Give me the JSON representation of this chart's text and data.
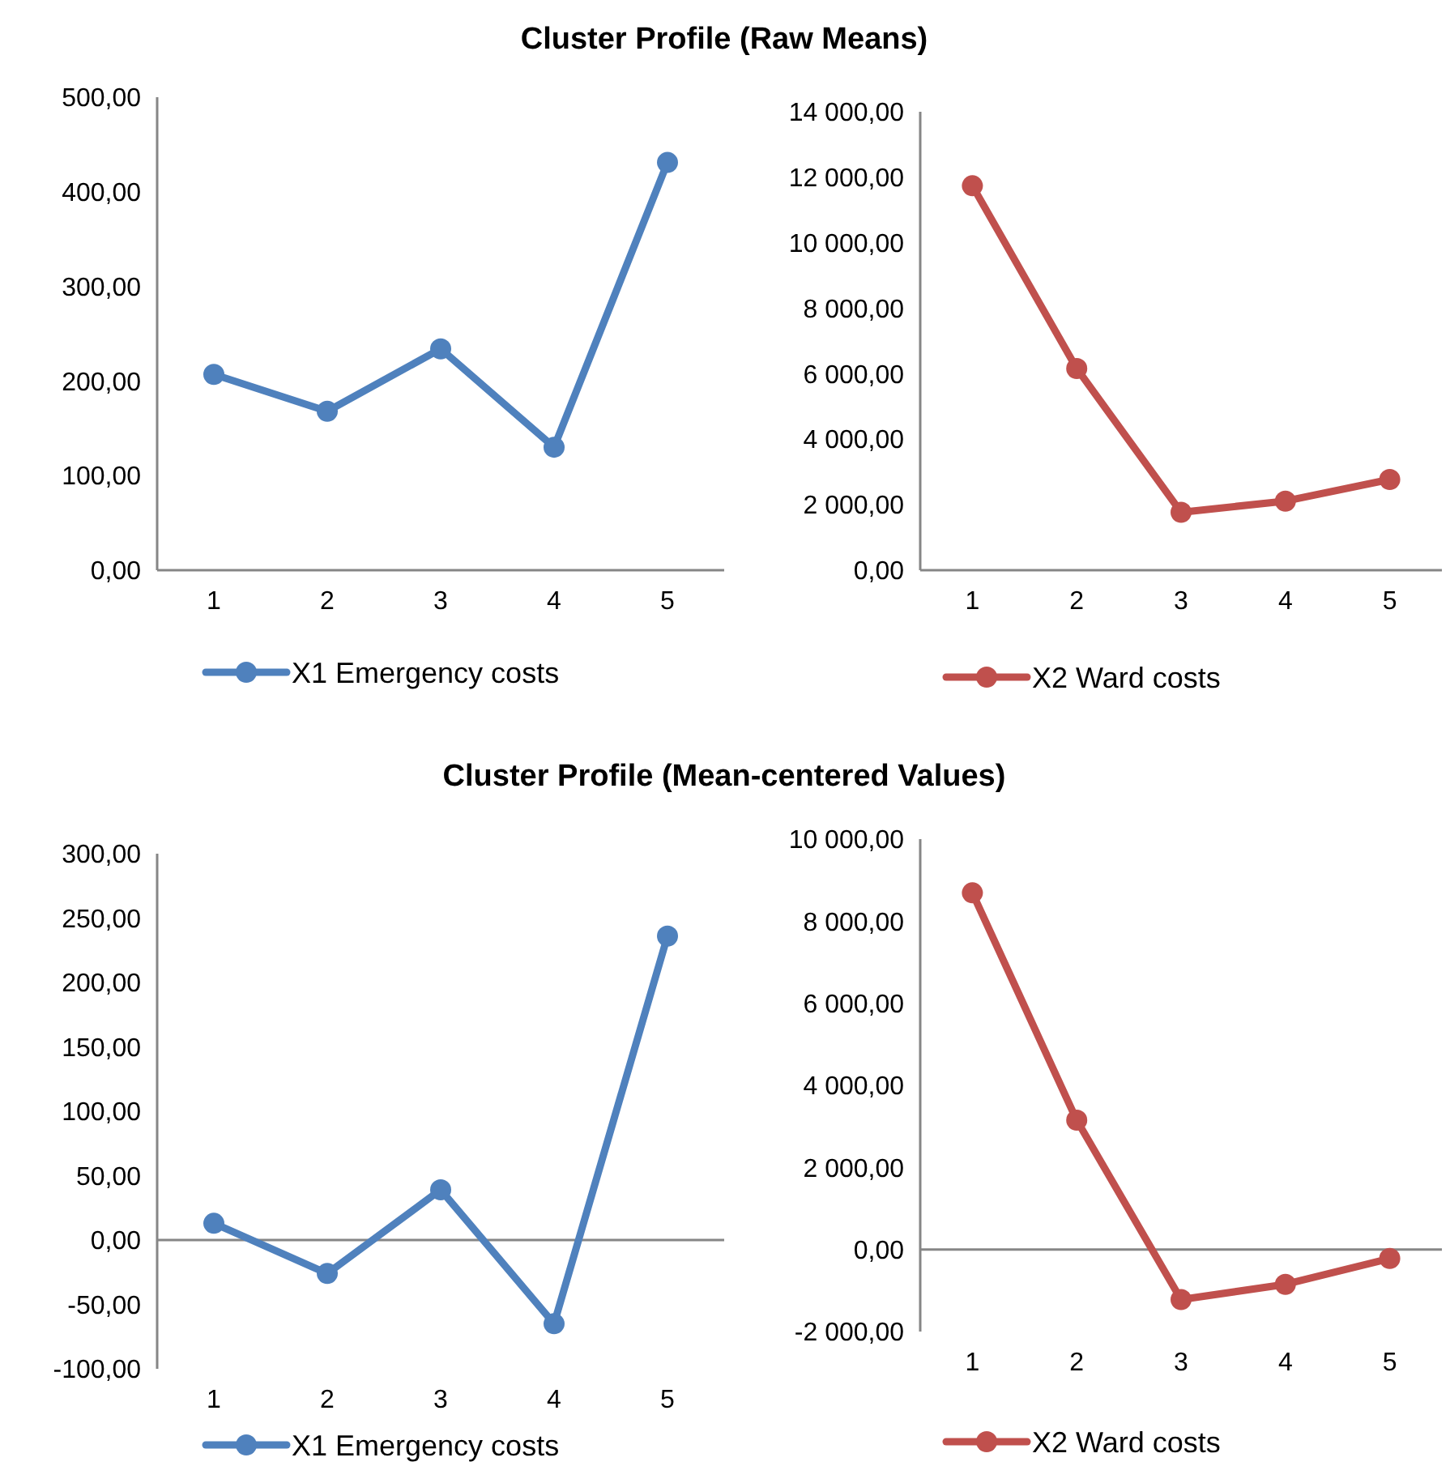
{
  "chart_data": [
    {
      "type": "line",
      "title": "Cluster Profile (Raw Means)",
      "categories": [
        "1",
        "2",
        "3",
        "4",
        "5"
      ],
      "series": [
        {
          "name": "X1 Emergency costs",
          "color": "#4f81bd",
          "values": [
            207,
            168,
            234,
            130,
            431
          ]
        }
      ],
      "ylim": [
        0,
        500
      ],
      "yticks": [
        {
          "value": 0,
          "label": "0,00"
        },
        {
          "value": 100,
          "label": "100,00"
        },
        {
          "value": 200,
          "label": "200,00"
        },
        {
          "value": 300,
          "label": "300,00"
        },
        {
          "value": 400,
          "label": "400,00"
        },
        {
          "value": 500,
          "label": "500,00"
        }
      ],
      "legend": "bottom",
      "marker": "circle",
      "grid": false
    },
    {
      "type": "line",
      "categories": [
        "1",
        "2",
        "3",
        "4",
        "5"
      ],
      "series": [
        {
          "name": "X2 Ward costs",
          "color": "#c0504d",
          "values": [
            11740,
            6160,
            1770,
            2110,
            2770
          ]
        }
      ],
      "ylim": [
        0,
        14000
      ],
      "yticks": [
        {
          "value": 0,
          "label": "0,00"
        },
        {
          "value": 2000,
          "label": "2 000,00"
        },
        {
          "value": 4000,
          "label": "4 000,00"
        },
        {
          "value": 6000,
          "label": "6 000,00"
        },
        {
          "value": 8000,
          "label": "8 000,00"
        },
        {
          "value": 10000,
          "label": "10 000,00"
        },
        {
          "value": 12000,
          "label": "12 000,00"
        },
        {
          "value": 14000,
          "label": "14 000,00"
        }
      ],
      "legend": "bottom",
      "marker": "circle",
      "grid": false
    },
    {
      "type": "line",
      "title": "Cluster Profile (Mean-centered Values)",
      "categories": [
        "1",
        "2",
        "3",
        "4",
        "5"
      ],
      "series": [
        {
          "name": "X1 Emergency costs",
          "color": "#4f81bd",
          "values": [
            13,
            -26,
            39,
            -65,
            236
          ]
        }
      ],
      "ylim": [
        -100,
        300
      ],
      "yticks": [
        {
          "value": -100,
          "label": "-100,00"
        },
        {
          "value": -50,
          "label": "-50,00"
        },
        {
          "value": 0,
          "label": "0,00"
        },
        {
          "value": 50,
          "label": "50,00"
        },
        {
          "value": 100,
          "label": "100,00"
        },
        {
          "value": 150,
          "label": "150,00"
        },
        {
          "value": 200,
          "label": "200,00"
        },
        {
          "value": 250,
          "label": "250,00"
        },
        {
          "value": 300,
          "label": "300,00"
        }
      ],
      "ref_lines": [
        {
          "axis": "y",
          "value": 0,
          "color": "#868686"
        }
      ],
      "legend": "bottom",
      "marker": "circle"
    },
    {
      "type": "line",
      "categories": [
        "1",
        "2",
        "3",
        "4",
        "5"
      ],
      "series": [
        {
          "name": "X2 Ward costs",
          "color": "#c0504d",
          "values": [
            8690,
            3150,
            -1220,
            -850,
            -220
          ]
        }
      ],
      "ylim": [
        -2000,
        10000
      ],
      "yticks": [
        {
          "value": -2000,
          "label": "-2 000,00"
        },
        {
          "value": 0,
          "label": "0,00"
        },
        {
          "value": 2000,
          "label": "2 000,00"
        },
        {
          "value": 4000,
          "label": "4 000,00"
        },
        {
          "value": 6000,
          "label": "6 000,00"
        },
        {
          "value": 8000,
          "label": "8 000,00"
        },
        {
          "value": 10000,
          "label": "10 000,00"
        }
      ],
      "ref_lines": [
        {
          "axis": "y",
          "value": 0,
          "color": "#868686"
        }
      ],
      "legend": "bottom",
      "marker": "circle"
    }
  ]
}
